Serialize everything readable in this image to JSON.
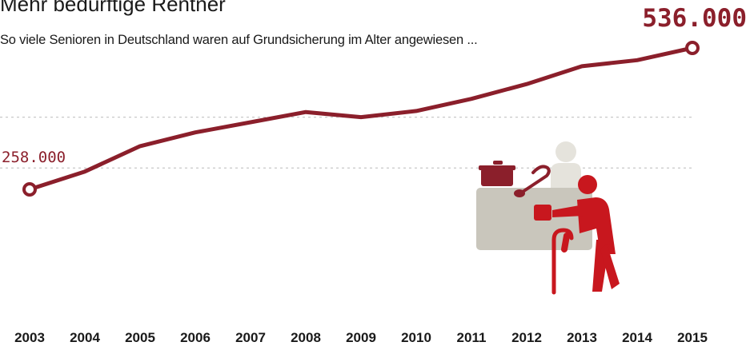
{
  "header": {
    "title": "Mehr bedürftige Rentner",
    "subtitle": "So viele Senioren in Deutschland waren auf Grundsicherung im Alter angewiesen ..."
  },
  "colors": {
    "line": "#8b1f2b",
    "grid": "#c8c8c8",
    "figure_red": "#c8171e",
    "figure_gray": "#c9c6bc",
    "figure_light": "#e5e3dc"
  },
  "illustration": {
    "icon": "pensioner-at-food-counter-icon"
  },
  "chart_data": {
    "type": "line",
    "title": "Mehr bedürftige Rentner",
    "subtitle": "So viele Senioren in Deutschland waren auf Grundsicherung im Alter angewiesen ...",
    "categories": [
      "2003",
      "2004",
      "2005",
      "2006",
      "2007",
      "2008",
      "2009",
      "2010",
      "2011",
      "2012",
      "2013",
      "2014",
      "2015"
    ],
    "series": [
      {
        "values": [
          258000,
          293000,
          343000,
          370000,
          390000,
          410000,
          400000,
          412000,
          436000,
          465000,
          500000,
          512000,
          536000
        ]
      }
    ],
    "annotations": {
      "start_label": "258.000",
      "end_label": "536.000"
    },
    "ylim": [
      100000,
      560000
    ],
    "gridlines": [
      400000,
      300000
    ],
    "grid": true,
    "legend": false
  }
}
